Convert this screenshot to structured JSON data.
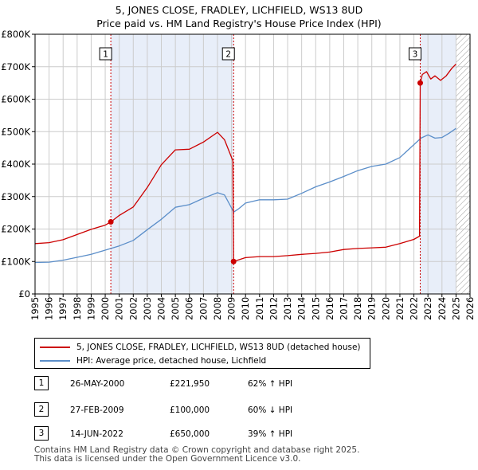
{
  "title": {
    "line1": "5, JONES CLOSE, FRADLEY, LICHFIELD, WS13 8UD",
    "line2": "Price paid vs. HM Land Registry's House Price Index (HPI)"
  },
  "colors": {
    "property_line": "#cc0000",
    "hpi_line": "#5b8ec9",
    "shade": "#e8eef9",
    "grid": "#cccccc",
    "marker_line": "#cc0000"
  },
  "legend": {
    "property_label": "5, JONES CLOSE, FRADLEY, LICHFIELD, WS13 8UD (detached house)",
    "hpi_label": "HPI: Average price, detached house, Lichfield"
  },
  "transactions": [
    {
      "num": "1",
      "date": "26-MAY-2000",
      "price": "£221,950",
      "hpi": "62% ↑ HPI"
    },
    {
      "num": "2",
      "date": "27-FEB-2009",
      "price": "£100,000",
      "hpi": "60% ↓ HPI"
    },
    {
      "num": "3",
      "date": "14-JUN-2022",
      "price": "£650,000",
      "hpi": "39% ↑ HPI"
    }
  ],
  "footer": {
    "line1": "Contains HM Land Registry data © Crown copyright and database right 2025.",
    "line2": "This data is licensed under the Open Government Licence v3.0."
  },
  "chart_data": {
    "type": "line",
    "title": "5, JONES CLOSE, FRADLEY, LICHFIELD, WS13 8UD — Price paid vs. HM Land Registry's House Price Index (HPI)",
    "xlabel": "",
    "ylabel": "",
    "xlim": [
      1995,
      2026
    ],
    "ylim": [
      0,
      800000
    ],
    "x_ticks": [
      1995,
      1996,
      1997,
      1998,
      1999,
      2000,
      2001,
      2002,
      2003,
      2004,
      2005,
      2006,
      2007,
      2008,
      2009,
      2010,
      2011,
      2012,
      2013,
      2014,
      2015,
      2016,
      2017,
      2018,
      2019,
      2020,
      2021,
      2022,
      2023,
      2024,
      2025,
      2026
    ],
    "y_ticks": [
      {
        "value": 0,
        "label": "£0"
      },
      {
        "value": 100000,
        "label": "£100K"
      },
      {
        "value": 200000,
        "label": "£200K"
      },
      {
        "value": 300000,
        "label": "£300K"
      },
      {
        "value": 400000,
        "label": "£400K"
      },
      {
        "value": 500000,
        "label": "£500K"
      },
      {
        "value": 600000,
        "label": "£600K"
      },
      {
        "value": 700000,
        "label": "£700K"
      },
      {
        "value": 800000,
        "label": "£800K"
      }
    ],
    "grid": true,
    "shaded_ranges": [
      [
        2000.4,
        2009.15
      ],
      [
        2022.45,
        2025.0
      ]
    ],
    "hatched_from": 2025.0,
    "sale_markers": [
      {
        "label": "1",
        "x": 2000.4,
        "y": 221950
      },
      {
        "label": "2",
        "x": 2009.15,
        "y": 100000
      },
      {
        "label": "3",
        "x": 2022.45,
        "y": 650000
      }
    ],
    "series": [
      {
        "name": "5, JONES CLOSE, FRADLEY, LICHFIELD, WS13 8UD (detached house)",
        "x": [
          1995.0,
          1996.0,
          1997.0,
          1998.0,
          1999.0,
          2000.0,
          2000.4,
          2001.0,
          2002.0,
          2003.0,
          2004.0,
          2005.0,
          2006.0,
          2007.0,
          2008.0,
          2008.5,
          2009.1,
          2009.15,
          2010.0,
          2011.0,
          2012.0,
          2013.0,
          2014.0,
          2015.0,
          2016.0,
          2017.0,
          2018.0,
          2019.0,
          2020.0,
          2021.0,
          2022.0,
          2022.4,
          2022.45,
          2022.6,
          2022.9,
          2023.2,
          2023.5,
          2023.9,
          2024.3,
          2024.7,
          2025.0
        ],
        "y": [
          155000,
          158000,
          167000,
          183000,
          199000,
          212000,
          221950,
          242000,
          268000,
          328000,
          398000,
          444000,
          446000,
          468000,
          498000,
          475000,
          410000,
          100000,
          112000,
          115000,
          115000,
          118000,
          122000,
          125000,
          129000,
          137000,
          140000,
          142000,
          144000,
          155000,
          168000,
          178000,
          650000,
          676000,
          685000,
          662000,
          672000,
          658000,
          672000,
          695000,
          708000
        ]
      },
      {
        "name": "HPI: Average price, detached house, Lichfield",
        "x": [
          1995.0,
          1996.0,
          1997.0,
          1998.0,
          1999.0,
          2000.0,
          2001.0,
          2002.0,
          2003.0,
          2004.0,
          2005.0,
          2006.0,
          2007.0,
          2008.0,
          2008.5,
          2009.0,
          2009.15,
          2009.5,
          2010.0,
          2011.0,
          2012.0,
          2013.0,
          2014.0,
          2015.0,
          2016.0,
          2017.0,
          2018.0,
          2019.0,
          2020.0,
          2021.0,
          2022.0,
          2022.5,
          2023.0,
          2023.5,
          2024.0,
          2024.5,
          2025.0
        ],
        "y": [
          97000,
          98000,
          104000,
          113000,
          122000,
          135000,
          148000,
          165000,
          198000,
          230000,
          267000,
          275000,
          295000,
          312000,
          305000,
          265000,
          252000,
          262000,
          280000,
          290000,
          290000,
          292000,
          310000,
          330000,
          345000,
          362000,
          380000,
          393000,
          400000,
          420000,
          460000,
          480000,
          490000,
          480000,
          482000,
          495000,
          510000
        ]
      }
    ]
  }
}
